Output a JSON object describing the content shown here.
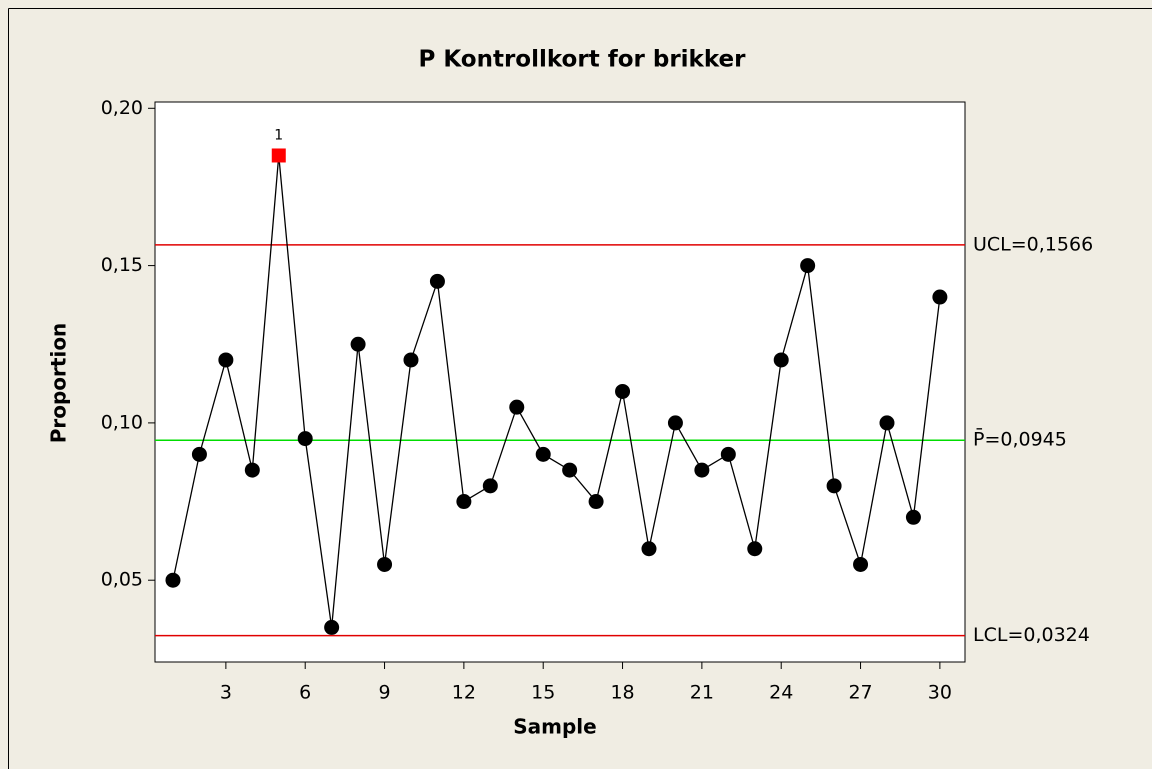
{
  "chart_data": {
    "type": "line",
    "title": "P Kontrollkort for brikker",
    "xlabel": "Sample",
    "ylabel": "Proportion",
    "x": [
      1,
      2,
      3,
      4,
      5,
      6,
      7,
      8,
      9,
      10,
      11,
      12,
      13,
      14,
      15,
      16,
      17,
      18,
      19,
      20,
      21,
      22,
      23,
      24,
      25,
      26,
      27,
      28,
      29,
      30
    ],
    "series": [
      {
        "name": "Proportion",
        "color": "#000000",
        "flag_color": "#ff0000",
        "values": [
          0.05,
          0.09,
          0.12,
          0.085,
          0.185,
          0.095,
          0.035,
          0.125,
          0.055,
          0.12,
          0.145,
          0.075,
          0.08,
          0.105,
          0.09,
          0.085,
          0.075,
          0.11,
          0.06,
          0.1,
          0.085,
          0.09,
          0.06,
          0.12,
          0.15,
          0.08,
          0.055,
          0.1,
          0.07,
          0.14
        ]
      }
    ],
    "xlim": [
      0.32,
      30.95
    ],
    "xticks": [
      3,
      6,
      9,
      12,
      15,
      18,
      21,
      24,
      27,
      30
    ],
    "ylim": [
      0.024,
      0.202
    ],
    "yticks": [
      {
        "value": 0.05,
        "label": "0,05"
      },
      {
        "value": 0.1,
        "label": "0,10"
      },
      {
        "value": 0.15,
        "label": "0,15"
      },
      {
        "value": 0.2,
        "label": "0,20"
      }
    ],
    "reference_lines": [
      {
        "value": 0.1566,
        "label": "UCL=0,1566",
        "color": "#e00000"
      },
      {
        "value": 0.0945,
        "label": "P̄=0,0945",
        "color": "#00dd00"
      },
      {
        "value": 0.0324,
        "label": "LCL=0,0324",
        "color": "#e00000"
      }
    ],
    "annotations": [
      {
        "text": "1",
        "x": 5
      }
    ],
    "grid": false
  }
}
